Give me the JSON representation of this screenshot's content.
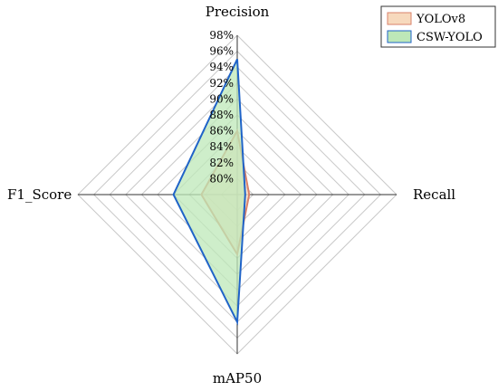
{
  "chart_data": {
    "type": "radar",
    "axes": [
      "Precision",
      "Recall",
      "mAP50",
      "F1_Score"
    ],
    "r_ticks": [
      "80%",
      "82%",
      "84%",
      "86%",
      "88%",
      "90%",
      "92%",
      "94%",
      "96%",
      "98%"
    ],
    "r_range": [
      78,
      98
    ],
    "grid": true,
    "legend_position": "top-right",
    "series": [
      {
        "name": "YOLOv8",
        "values": [
          86.0,
          79.5,
          85.5,
          82.5
        ],
        "line_color": "#d9826a",
        "fill_color": "#f7d9bd"
      },
      {
        "name": "CSW-YOLO",
        "values": [
          95.0,
          79.0,
          94.0,
          86.0
        ],
        "line_color": "#1f63c8",
        "fill_color": "#bde8b8"
      }
    ]
  }
}
